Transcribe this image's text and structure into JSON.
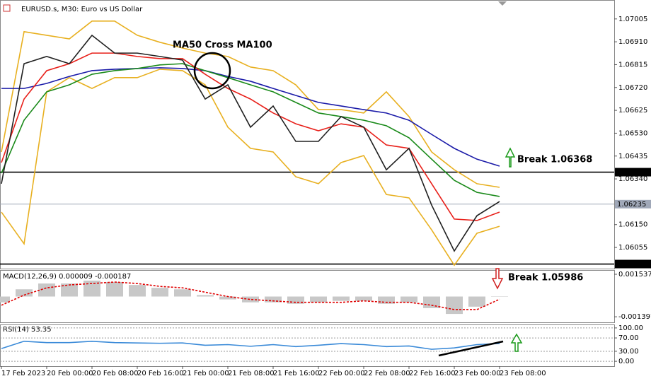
{
  "header": {
    "title": "EURUSD.s, M30:  Euro vs US Dollar"
  },
  "annotations": [
    "MA50 Cross MA100",
    "Break 1.06368",
    "Break 1.05986"
  ],
  "chart_data": [
    {
      "type": "line",
      "title": "EURUSD.s, M30:  Euro vs US Dollar",
      "ylim": [
        1.05967,
        1.07072
      ],
      "yticks": [
        1.07005,
        {
          "value": 1.0691,
          "label": "1.06910"
        },
        1.06815,
        {
          "value": 1.0672,
          "label": "1.06720"
        },
        1.06625,
        {
          "value": 1.0653,
          "label": "1.06530"
        },
        1.06435,
        {
          "value": 1.0634,
          "label": "1.06340"
        },
        {
          "value": 1.0615,
          "label": "1.06150"
        },
        1.06055
      ],
      "levels": [
        {
          "value": 1.06368,
          "color": "#000000"
        },
        {
          "value": 1.06235,
          "color": "#a0a8b8"
        },
        {
          "value": 1.05986,
          "color": "#000000"
        }
      ],
      "series": [
        {
          "color": "#e8b020",
          "values": [
            1.06452,
            1.06952,
            1.06937,
            1.06922,
            1.06996,
            1.06996,
            1.06937,
            1.06908,
            1.06884,
            1.06863,
            1.06849,
            1.06805,
            1.0679,
            1.06731,
            1.06628,
            1.06628,
            1.06614,
            1.06702,
            1.06599,
            1.06452,
            1.06378,
            1.0632,
            1.06305
          ]
        },
        {
          "color": "#e8b020",
          "values": [
            1.06202,
            1.0607,
            1.06702,
            1.06761,
            1.06716,
            1.06761,
            1.06761,
            1.06796,
            1.0679,
            1.06731,
            1.06555,
            1.06467,
            1.06452,
            1.06349,
            1.0632,
            1.06408,
            1.06437,
            1.06275,
            1.06261,
            1.06128,
            1.05981,
            1.06114,
            1.06143
          ]
        },
        {
          "color": "#1a1aa8",
          "values": [
            1.06716,
            1.06716,
            1.06737,
            1.06766,
            1.0679,
            1.06796,
            1.06799,
            1.06802,
            1.06799,
            1.0679,
            1.06766,
            1.06746,
            1.06716,
            1.06687,
            1.06658,
            1.06643,
            1.06628,
            1.06614,
            1.06584,
            1.06525,
            1.06467,
            1.06422,
            1.06393
          ]
        },
        {
          "color": "#1a8a1a",
          "values": [
            1.06364,
            1.06584,
            1.06702,
            1.06731,
            1.06775,
            1.0679,
            1.06799,
            1.06814,
            1.06819,
            1.0679,
            1.06761,
            1.06731,
            1.06702,
            1.06658,
            1.06614,
            1.06599,
            1.06584,
            1.06561,
            1.06511,
            1.06422,
            1.06334,
            1.06284,
            1.06267
          ]
        },
        {
          "color": "#e8201a",
          "values": [
            1.06408,
            1.06672,
            1.0679,
            1.06819,
            1.06863,
            1.06863,
            1.06849,
            1.0684,
            1.0684,
            1.06775,
            1.06716,
            1.06672,
            1.06614,
            1.06569,
            1.0654,
            1.06569,
            1.06555,
            1.06481,
            1.06467,
            1.0632,
            1.06173,
            1.06167,
            1.06202
          ]
        },
        {
          "color": "#202020",
          "values": [
            1.0632,
            1.06819,
            1.06849,
            1.06819,
            1.06937,
            1.06863,
            1.06863,
            1.06849,
            1.06834,
            1.06672,
            1.06731,
            1.06555,
            1.06643,
            1.06496,
            1.06496,
            1.06599,
            1.06555,
            1.06378,
            1.06467,
            1.06231,
            1.0604,
            1.06187,
            1.06246
          ]
        }
      ]
    },
    {
      "type": "bar",
      "title": "MACD(12,26,9) 0.000009 -0.000187",
      "ylim": [
        -0.00178,
        0.00183
      ],
      "yticks": [
        0.001537,
        -0.001397
      ],
      "series": [
        {
          "type": "bar",
          "color": "#c8c8c8",
          "values": [
            -0.0004,
            0.0005,
            0.0009,
            0.0009,
            0.0011,
            0.001,
            0.0008,
            0.0006,
            0.0005,
            0.0001,
            -0.0002,
            -0.0004,
            -0.0004,
            -0.0005,
            -0.0004,
            -0.0003,
            -0.0003,
            -0.0005,
            -0.0004,
            -0.0008,
            -0.0012,
            -0.0007,
            9e-06
          ]
        },
        {
          "type": "line",
          "dashed": true,
          "color": "#e00000",
          "values": [
            -0.0006,
            0.0001,
            0.0006,
            0.0008,
            0.0009,
            0.001,
            0.0009,
            0.0007,
            0.0006,
            0.0003,
            0,
            -0.0002,
            -0.0003,
            -0.0004,
            -0.0004,
            -0.0004,
            -0.0003,
            -0.0004,
            -0.0004,
            -0.0006,
            -0.0009,
            -0.0009,
            -0.000187
          ]
        }
      ]
    },
    {
      "type": "line",
      "title": "RSI(14) 53.35",
      "ylim": [
        -14.6,
        110.4
      ],
      "yticks": [
        {
          "value": 100,
          "label": "100.00"
        },
        {
          "value": 70,
          "label": "70.00"
        },
        {
          "value": 30,
          "label": "30.00"
        },
        {
          "value": 0,
          "label": "0.00"
        }
      ],
      "grid": true,
      "categories": [
        "17 Feb 2023",
        null,
        "20 Feb 00:00",
        null,
        "20 Feb 08:00",
        null,
        "20 Feb 16:00",
        null,
        "21 Feb 00:00",
        null,
        "21 Feb 08:00",
        null,
        "21 Feb 16:00",
        null,
        "22 Feb 00:00",
        null,
        "22 Feb 08:00",
        null,
        "22 Feb 16:00",
        null,
        "23 Feb 00:00",
        null,
        "23 Feb 08:00"
      ],
      "series": [
        {
          "color": "#3a8ad8",
          "values": [
            38,
            60,
            56,
            56,
            60,
            56,
            55,
            54,
            55,
            48,
            50,
            45,
            50,
            44,
            48,
            53,
            50,
            44,
            46,
            36,
            40,
            50,
            53.35
          ]
        }
      ]
    }
  ]
}
